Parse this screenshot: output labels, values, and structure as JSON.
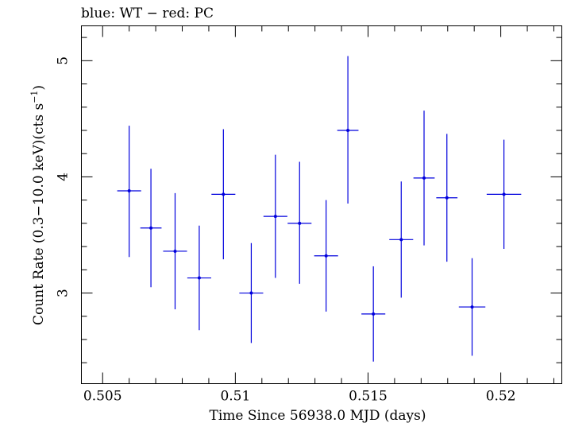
{
  "chart_data": {
    "type": "scatter",
    "title": "blue: WT − red: PC",
    "xlabel": "Time Since 56938.0 MJD (days)",
    "ylabel_main": "Count Rate (0.3−10.0 keV)(cts s",
    "ylabel_sup": "−1",
    "ylabel_tail": ")",
    "xlim": [
      0.5042,
      0.5223
    ],
    "ylim": [
      2.22,
      5.3
    ],
    "x_ticks": [
      0.505,
      0.51,
      0.515,
      0.52
    ],
    "x_tick_labels": [
      "0.505",
      "0.51",
      "0.515",
      "0.52"
    ],
    "x_minor_step": 0.001,
    "y_ticks": [
      3,
      4,
      5
    ],
    "y_tick_labels": [
      "3",
      "4",
      "5"
    ],
    "y_minor_step": 0.2,
    "grid": false,
    "colors": {
      "WT": "#0000dd",
      "axes": "#000000"
    },
    "series": [
      {
        "name": "WT",
        "points": [
          {
            "x": 0.506,
            "xerr": 0.00045,
            "y": 3.88,
            "yerr_lo": 0.57,
            "yerr_hi": 0.56
          },
          {
            "x": 0.50682,
            "xerr": 0.0004,
            "y": 3.56,
            "yerr_lo": 0.51,
            "yerr_hi": 0.51
          },
          {
            "x": 0.50773,
            "xerr": 0.00045,
            "y": 3.36,
            "yerr_lo": 0.5,
            "yerr_hi": 0.5
          },
          {
            "x": 0.50864,
            "xerr": 0.00045,
            "y": 3.13,
            "yerr_lo": 0.45,
            "yerr_hi": 0.45
          },
          {
            "x": 0.50955,
            "xerr": 0.00045,
            "y": 3.85,
            "yerr_lo": 0.56,
            "yerr_hi": 0.56
          },
          {
            "x": 0.5106,
            "xerr": 0.00045,
            "y": 3.0,
            "yerr_lo": 0.43,
            "yerr_hi": 0.43
          },
          {
            "x": 0.51151,
            "xerr": 0.00045,
            "y": 3.66,
            "yerr_lo": 0.53,
            "yerr_hi": 0.53
          },
          {
            "x": 0.51242,
            "xerr": 0.00045,
            "y": 3.6,
            "yerr_lo": 0.52,
            "yerr_hi": 0.53
          },
          {
            "x": 0.51342,
            "xerr": 0.00045,
            "y": 3.32,
            "yerr_lo": 0.48,
            "yerr_hi": 0.48
          },
          {
            "x": 0.51424,
            "xerr": 0.0004,
            "y": 4.4,
            "yerr_lo": 0.63,
            "yerr_hi": 0.64
          },
          {
            "x": 0.5152,
            "xerr": 0.00045,
            "y": 2.82,
            "yerr_lo": 0.41,
            "yerr_hi": 0.41
          },
          {
            "x": 0.51625,
            "xerr": 0.00045,
            "y": 3.46,
            "yerr_lo": 0.5,
            "yerr_hi": 0.5
          },
          {
            "x": 0.51711,
            "xerr": 0.0004,
            "y": 3.99,
            "yerr_lo": 0.58,
            "yerr_hi": 0.58
          },
          {
            "x": 0.51797,
            "xerr": 0.0004,
            "y": 3.82,
            "yerr_lo": 0.55,
            "yerr_hi": 0.55
          },
          {
            "x": 0.51892,
            "xerr": 0.0005,
            "y": 2.88,
            "yerr_lo": 0.42,
            "yerr_hi": 0.42
          },
          {
            "x": 0.52012,
            "xerr": 0.00065,
            "y": 3.85,
            "yerr_lo": 0.47,
            "yerr_hi": 0.47
          }
        ]
      }
    ]
  }
}
